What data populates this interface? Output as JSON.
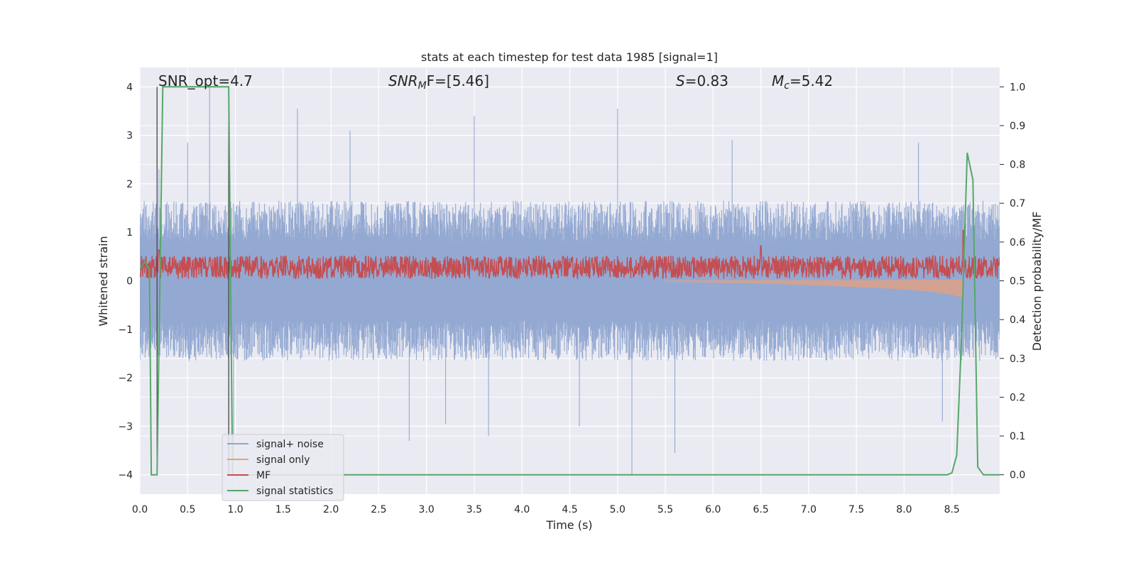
{
  "chart_data": {
    "type": "line",
    "title": "stats at each timestep for test data 1985 [signal=1]",
    "xlabel": "Time (s)",
    "ylabel": "Whitened strain",
    "y2label": "Detection probability/MF",
    "xlim": [
      0,
      9.0
    ],
    "ylim": [
      -4.4,
      4.4
    ],
    "y2lim": [
      -0.05,
      1.05
    ],
    "xticks": [
      0.0,
      0.5,
      1.0,
      1.5,
      2.0,
      2.5,
      3.0,
      3.5,
      4.0,
      4.5,
      5.0,
      5.5,
      6.0,
      6.5,
      7.0,
      7.5,
      8.0,
      8.5
    ],
    "xtick_labels": [
      "0.0",
      "0.5",
      "1.0",
      "1.5",
      "2.0",
      "2.5",
      "3.0",
      "3.5",
      "4.0",
      "4.5",
      "5.0",
      "5.5",
      "6.0",
      "6.5",
      "7.0",
      "7.5",
      "8.0",
      "8.5"
    ],
    "yticks": [
      -4,
      -3,
      -2,
      -1,
      0,
      1,
      2,
      3,
      4
    ],
    "ytick_labels": [
      "−4",
      "−3",
      "−2",
      "−1",
      "0",
      "1",
      "2",
      "3",
      "4"
    ],
    "y2ticks": [
      0.0,
      0.1,
      0.2,
      0.3,
      0.4,
      0.5,
      0.6,
      0.7,
      0.8,
      0.9,
      1.0
    ],
    "y2tick_labels": [
      "0.0",
      "0.1",
      "0.2",
      "0.3",
      "0.4",
      "0.5",
      "0.6",
      "0.7",
      "0.8",
      "0.9",
      "1.0"
    ],
    "grid": true,
    "legend_position": "lower-left",
    "annotations": {
      "snr_opt": "SNR_opt=4.7",
      "snr_mf_main": "SNR",
      "snr_mf_sub": "M",
      "snr_mf_rest": "F=[5.46]",
      "s_main": "S",
      "s_rest": "=0.83",
      "mc_main": "M",
      "mc_sub": "c",
      "mc_rest": "=5.42"
    },
    "series": [
      {
        "name": "signal+ noise",
        "color": "#8fa5d0",
        "axis": "left",
        "style": "noise",
        "x_range": [
          0,
          9.0
        ],
        "envelope": [
          [
            0,
            1.5
          ],
          [
            9.0,
            1.5
          ]
        ],
        "peaks": [
          {
            "x": 0.73,
            "y": 4.0
          },
          {
            "x": 0.2,
            "y": 2.3
          },
          {
            "x": 1.65,
            "y": 3.55
          },
          {
            "x": 2.2,
            "y": 3.1
          },
          {
            "x": 3.5,
            "y": 3.4
          },
          {
            "x": 5.0,
            "y": 3.55
          },
          {
            "x": 8.15,
            "y": 2.85
          },
          {
            "x": 0.5,
            "y": 2.85
          },
          {
            "x": 6.2,
            "y": 2.9
          },
          {
            "x": 0.98,
            "y": -3.7
          },
          {
            "x": 2.82,
            "y": -3.3
          },
          {
            "x": 3.2,
            "y": -2.95
          },
          {
            "x": 3.65,
            "y": -3.2
          },
          {
            "x": 4.6,
            "y": -3.0
          },
          {
            "x": 5.15,
            "y": -4.0
          },
          {
            "x": 5.6,
            "y": -3.55
          },
          {
            "x": 8.4,
            "y": -2.9
          }
        ]
      },
      {
        "name": "signal only",
        "color": "#e8a07a",
        "axis": "left",
        "style": "chirp",
        "x": [
          5.5,
          6.0,
          6.5,
          7.0,
          7.5,
          8.0,
          8.3,
          8.5,
          8.62
        ],
        "amplitude": [
          0.01,
          0.03,
          0.05,
          0.08,
          0.12,
          0.17,
          0.22,
          0.28,
          0.34
        ]
      },
      {
        "name": "MF",
        "color": "#c44e52",
        "axis": "right",
        "style": "noise",
        "x_range": [
          0,
          9.0
        ],
        "mean": 0.535,
        "spread": 0.03,
        "peaks": [
          {
            "x": 6.5,
            "y": 0.59
          },
          {
            "x": 0.2,
            "y": 0.58
          },
          {
            "x": 8.62,
            "y": 0.63
          }
        ]
      },
      {
        "name": "signal statistics",
        "color": "#55a868",
        "axis": "right",
        "style": "line",
        "x": [
          0.0,
          0.05,
          0.1,
          0.12,
          0.18,
          0.24,
          0.3,
          0.93,
          0.97,
          1.0,
          8.45,
          8.5,
          8.55,
          8.6,
          8.66,
          8.72,
          8.77,
          8.83,
          8.89,
          9.0
        ],
        "values": [
          0.53,
          0.55,
          0.53,
          0.0,
          0.0,
          1.0,
          1.0,
          1.0,
          0.0,
          0.0,
          0.0,
          0.005,
          0.05,
          0.35,
          0.83,
          0.76,
          0.02,
          0.0,
          0.0,
          0.0
        ]
      }
    ],
    "vertical_lines": [
      0.18,
      0.93
    ]
  }
}
